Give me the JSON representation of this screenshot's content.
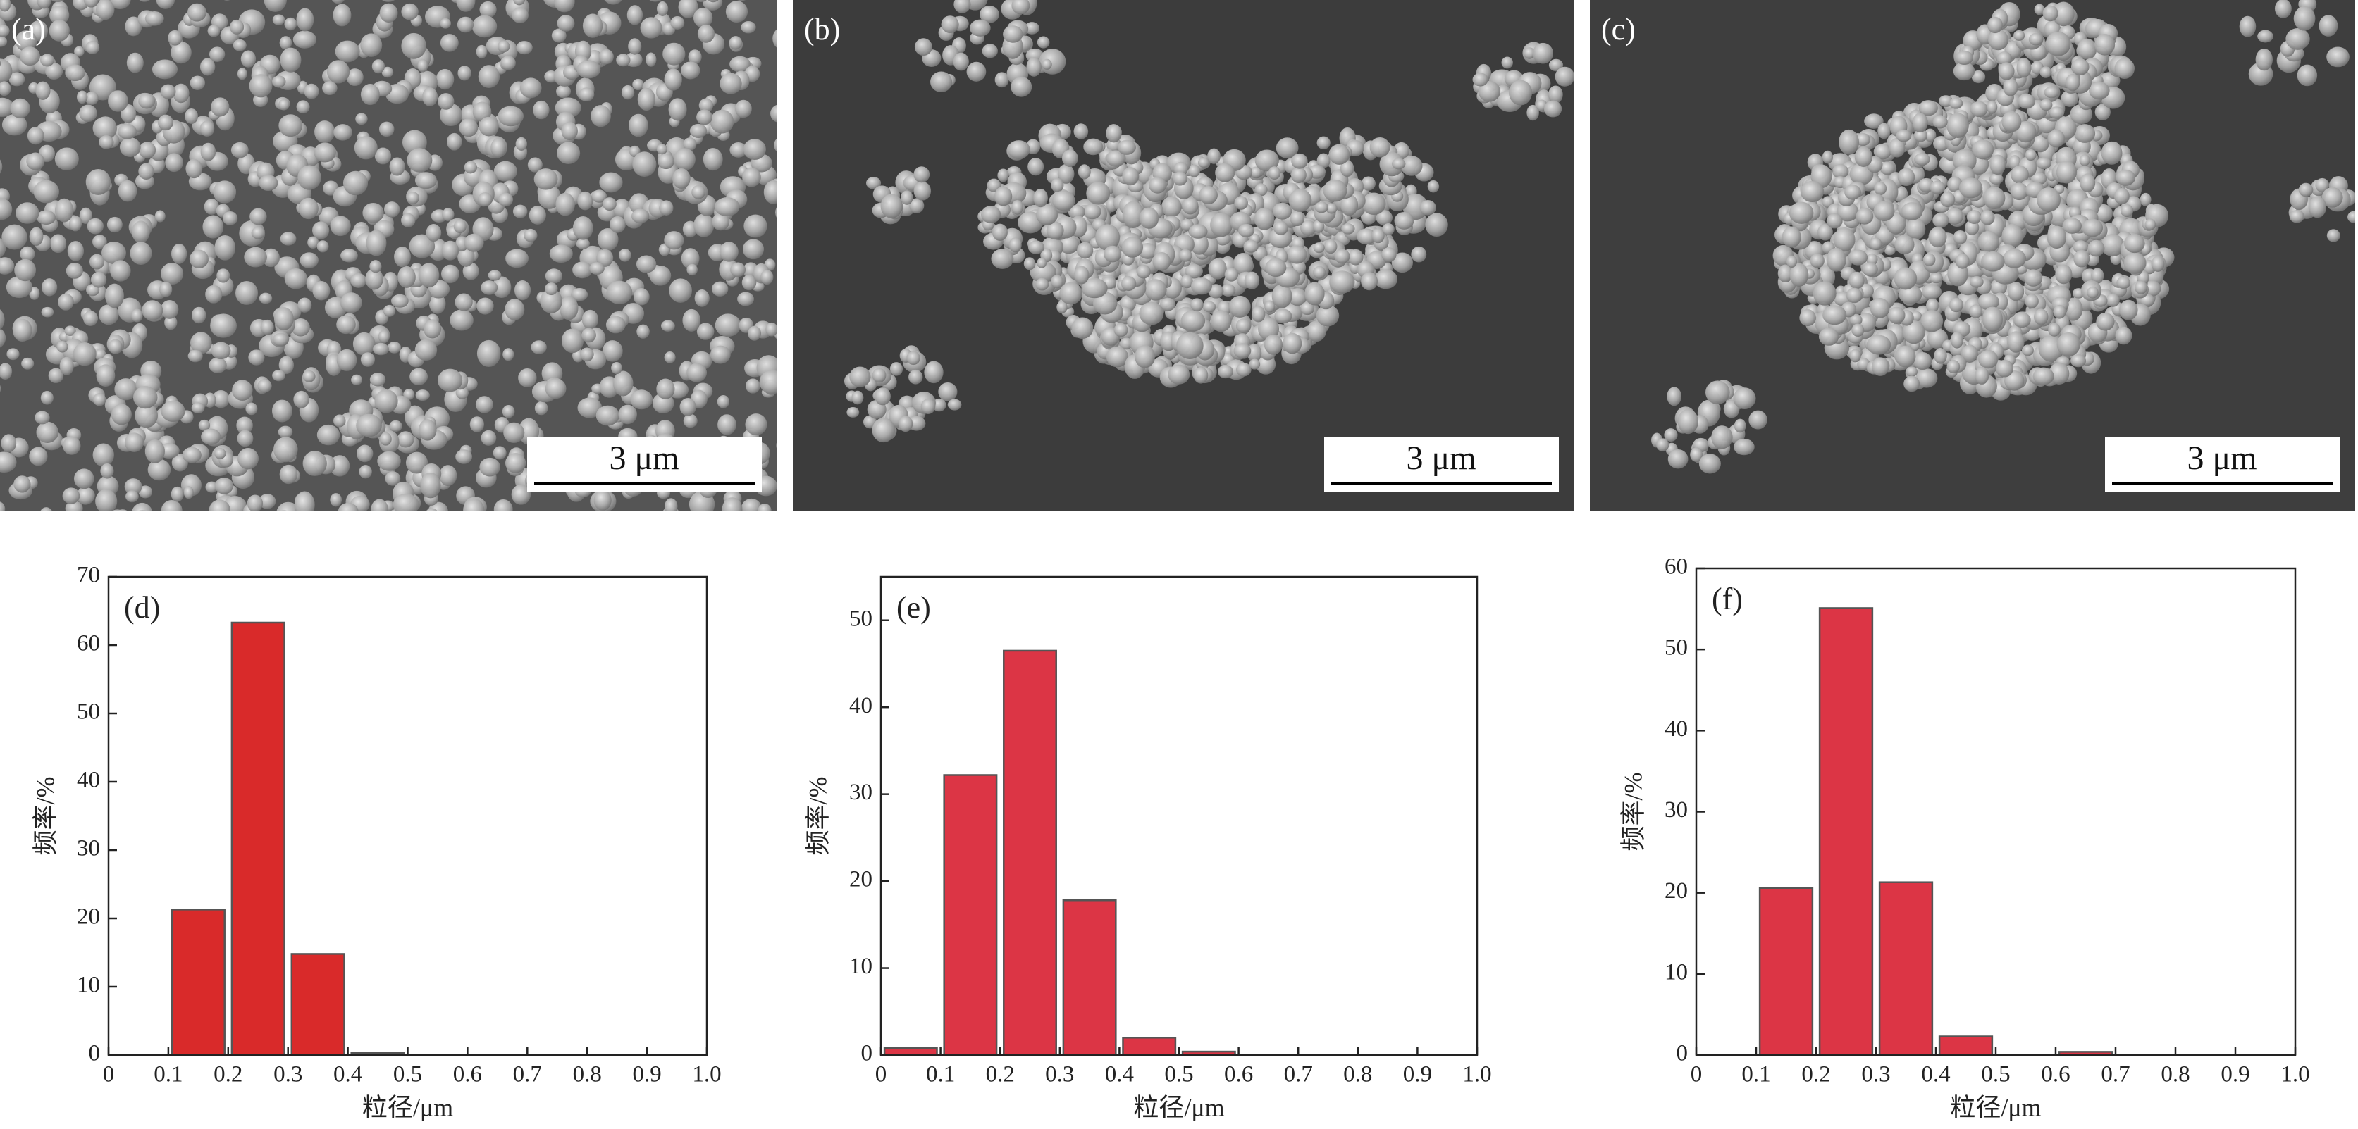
{
  "images": [
    {
      "label": "(a)",
      "scale_bar": "3 μm"
    },
    {
      "label": "(b)",
      "scale_bar": "3 μm"
    },
    {
      "label": "(c)",
      "scale_bar": "3 μm"
    }
  ],
  "chart_data": [
    {
      "type": "histogram",
      "annotation": "(d)",
      "x_label": "粒径/μm",
      "y_label": "频率/%",
      "bins": [
        0,
        0.1,
        0.2,
        0.3,
        0.4,
        0.5,
        0.6,
        0.7,
        0.8,
        0.9,
        1
      ],
      "values": [
        0,
        21.3,
        63.3,
        14.8,
        0.3,
        0,
        0,
        0,
        0,
        0
      ],
      "color": "#d92a2a",
      "edge_color": "#555555",
      "xlim": [
        0,
        1
      ],
      "xticks": [
        0,
        0.1,
        0.2,
        0.3,
        0.4,
        0.5,
        0.6,
        0.7,
        0.8,
        0.9,
        {
          "value": 1,
          "label": "1.0"
        }
      ],
      "ylim": [
        0,
        70
      ],
      "yticks": [
        0,
        10,
        20,
        30,
        40,
        50,
        60,
        70
      ]
    },
    {
      "type": "histogram",
      "annotation": "(e)",
      "x_label": "粒径/μm",
      "y_label": "频率/%",
      "bins": [
        0,
        0.1,
        0.2,
        0.3,
        0.4,
        0.5,
        0.6,
        0.7,
        0.8,
        0.9,
        1
      ],
      "values": [
        0.8,
        32.2,
        46.5,
        17.8,
        2.0,
        0.4,
        0,
        0,
        0,
        0
      ],
      "color": "#dc3545",
      "edge_color": "#555555",
      "xlim": [
        0,
        1
      ],
      "xticks": [
        0,
        0.1,
        0.2,
        0.3,
        0.4,
        0.5,
        0.6,
        0.7,
        0.8,
        0.9,
        {
          "value": 1,
          "label": "1.0"
        }
      ],
      "ylim": [
        0,
        55
      ],
      "yticks": [
        0,
        10,
        20,
        30,
        40,
        50
      ]
    },
    {
      "type": "histogram",
      "annotation": "(f)",
      "x_label": "粒径/μm",
      "y_label": "频率/%",
      "bins": [
        0,
        0.1,
        0.2,
        0.3,
        0.4,
        0.5,
        0.6,
        0.7,
        0.8,
        0.9,
        1
      ],
      "values": [
        0,
        20.6,
        55.1,
        21.3,
        2.3,
        0,
        0.4,
        0,
        0,
        0
      ],
      "color": "#dc3545",
      "edge_color": "#555555",
      "xlim": [
        0,
        1
      ],
      "xticks": [
        0,
        0.1,
        0.2,
        0.3,
        0.4,
        0.5,
        0.6,
        0.7,
        0.8,
        0.9,
        {
          "value": 1,
          "label": "1.0"
        }
      ],
      "ylim": [
        0,
        60
      ],
      "yticks": [
        0,
        10,
        20,
        30,
        40,
        50,
        60
      ]
    }
  ]
}
